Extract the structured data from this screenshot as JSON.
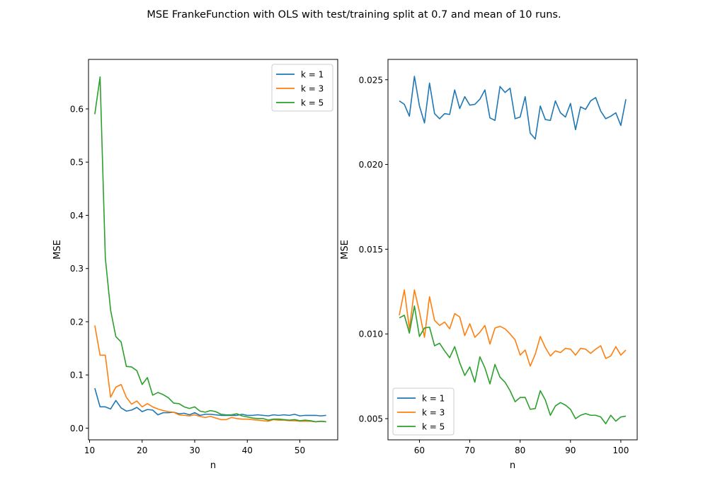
{
  "figure": {
    "title": "MSE FrankeFunction with OLS with test/training split at 0.7 and mean of 10 runs."
  },
  "chart_data": [
    {
      "type": "line",
      "xlabel": "n",
      "ylabel": "MSE",
      "xlim": [
        9.8,
        57.2
      ],
      "ylim": [
        -0.022,
        0.693
      ],
      "xticks": [
        10,
        20,
        30,
        40,
        50
      ],
      "xtick_labels": [
        "10",
        "20",
        "30",
        "40",
        "50"
      ],
      "yticks": [
        0.0,
        0.1,
        0.2,
        0.3,
        0.4,
        0.5,
        0.6
      ],
      "ytick_labels": [
        "0.0",
        "0.1",
        "0.2",
        "0.3",
        "0.4",
        "0.5",
        "0.6"
      ],
      "legend_position": "top-right",
      "grid": false,
      "x": [
        11,
        12,
        13,
        14,
        15,
        16,
        17,
        18,
        19,
        20,
        21,
        22,
        23,
        24,
        25,
        26,
        27,
        28,
        29,
        30,
        31,
        32,
        33,
        34,
        35,
        36,
        37,
        38,
        39,
        40,
        41,
        42,
        43,
        44,
        45,
        46,
        47,
        48,
        49,
        50,
        51,
        52,
        53,
        54,
        55
      ],
      "series": [
        {
          "name": "k = 1",
          "color": "#1f77b4",
          "values": [
            0.075,
            0.04,
            0.04,
            0.036,
            0.052,
            0.038,
            0.032,
            0.034,
            0.039,
            0.031,
            0.035,
            0.034,
            0.025,
            0.029,
            0.029,
            0.03,
            0.027,
            0.028,
            0.025,
            0.029,
            0.024,
            0.026,
            0.026,
            0.025,
            0.024,
            0.024,
            0.024,
            0.024,
            0.026,
            0.024,
            0.024,
            0.025,
            0.024,
            0.023,
            0.025,
            0.024,
            0.025,
            0.024,
            0.026,
            0.023,
            0.024,
            0.024,
            0.024,
            0.023,
            0.024
          ]
        },
        {
          "name": "k = 3",
          "color": "#ff7f0e",
          "values": [
            0.193,
            0.137,
            0.137,
            0.058,
            0.077,
            0.082,
            0.058,
            0.045,
            0.051,
            0.04,
            0.046,
            0.04,
            0.036,
            0.033,
            0.031,
            0.03,
            0.025,
            0.024,
            0.023,
            0.025,
            0.022,
            0.02,
            0.022,
            0.019,
            0.016,
            0.016,
            0.02,
            0.018,
            0.017,
            0.017,
            0.016,
            0.015,
            0.014,
            0.013,
            0.016,
            0.015,
            0.015,
            0.014,
            0.014,
            0.013,
            0.013,
            0.013,
            0.012,
            0.013,
            0.012
          ]
        },
        {
          "name": "k = 5",
          "color": "#2ca02c",
          "values": [
            0.59,
            0.66,
            0.32,
            0.222,
            0.172,
            0.162,
            0.116,
            0.115,
            0.108,
            0.082,
            0.095,
            0.062,
            0.067,
            0.063,
            0.057,
            0.047,
            0.046,
            0.04,
            0.037,
            0.04,
            0.032,
            0.03,
            0.033,
            0.031,
            0.026,
            0.025,
            0.025,
            0.027,
            0.023,
            0.021,
            0.019,
            0.018,
            0.018,
            0.015,
            0.017,
            0.017,
            0.016,
            0.015,
            0.016,
            0.014,
            0.015,
            0.014,
            0.012,
            0.013,
            0.012
          ]
        }
      ]
    },
    {
      "type": "line",
      "xlabel": "n",
      "ylabel": "MSE",
      "xlim": [
        53.75,
        103.25
      ],
      "ylim": [
        0.00375,
        0.0262
      ],
      "xticks": [
        60,
        70,
        80,
        90,
        100
      ],
      "xtick_labels": [
        "60",
        "70",
        "80",
        "90",
        "100"
      ],
      "yticks": [
        0.005,
        0.01,
        0.015,
        0.02,
        0.025
      ],
      "ytick_labels": [
        "0.005",
        "0.010",
        "0.015",
        "0.020",
        "0.025"
      ],
      "legend_position": "bottom-left",
      "grid": false,
      "x": [
        56,
        57,
        58,
        59,
        60,
        61,
        62,
        63,
        64,
        65,
        66,
        67,
        68,
        69,
        70,
        71,
        72,
        73,
        74,
        75,
        76,
        77,
        78,
        79,
        80,
        81,
        82,
        83,
        84,
        85,
        86,
        87,
        88,
        89,
        90,
        91,
        92,
        93,
        94,
        95,
        96,
        97,
        98,
        99,
        100,
        101
      ],
      "series": [
        {
          "name": "k = 1",
          "color": "#1f77b4",
          "values": [
            0.02375,
            0.02355,
            0.02285,
            0.0252,
            0.02345,
            0.02245,
            0.0248,
            0.023,
            0.0227,
            0.023,
            0.02295,
            0.0244,
            0.0233,
            0.024,
            0.0235,
            0.02355,
            0.02385,
            0.0244,
            0.02275,
            0.0226,
            0.0246,
            0.02425,
            0.0245,
            0.0227,
            0.0228,
            0.024,
            0.02185,
            0.0215,
            0.02345,
            0.02265,
            0.0226,
            0.02375,
            0.02305,
            0.0228,
            0.0236,
            0.02205,
            0.0234,
            0.02325,
            0.02375,
            0.02395,
            0.02315,
            0.0227,
            0.02285,
            0.02305,
            0.0223,
            0.02385
          ]
        },
        {
          "name": "k = 3",
          "color": "#ff7f0e",
          "values": [
            0.0111,
            0.0126,
            0.0103,
            0.0126,
            0.0113,
            0.0098,
            0.0122,
            0.0108,
            0.0105,
            0.0107,
            0.0103,
            0.0112,
            0.011,
            0.0099,
            0.0106,
            0.0098,
            0.0101,
            0.0105,
            0.0094,
            0.01035,
            0.01045,
            0.0103,
            0.01,
            0.00965,
            0.00875,
            0.00905,
            0.0081,
            0.0088,
            0.00985,
            0.0092,
            0.0087,
            0.009,
            0.0089,
            0.00915,
            0.0091,
            0.00875,
            0.00915,
            0.0091,
            0.00885,
            0.0091,
            0.0093,
            0.00855,
            0.0087,
            0.00925,
            0.00875,
            0.00905
          ]
        },
        {
          "name": "k = 5",
          "color": "#2ca02c",
          "values": [
            0.01095,
            0.0111,
            0.01005,
            0.01165,
            0.00985,
            0.01035,
            0.0104,
            0.0093,
            0.00945,
            0.009,
            0.0086,
            0.00925,
            0.0083,
            0.00755,
            0.00805,
            0.00715,
            0.00865,
            0.008,
            0.00705,
            0.0082,
            0.00745,
            0.00715,
            0.00665,
            0.006,
            0.00625,
            0.00625,
            0.00555,
            0.0056,
            0.00665,
            0.0061,
            0.0052,
            0.00575,
            0.00595,
            0.0058,
            0.00555,
            0.005,
            0.0052,
            0.0053,
            0.0052,
            0.0052,
            0.0051,
            0.0047,
            0.0052,
            0.00485,
            0.0051,
            0.00515
          ]
        }
      ]
    }
  ]
}
